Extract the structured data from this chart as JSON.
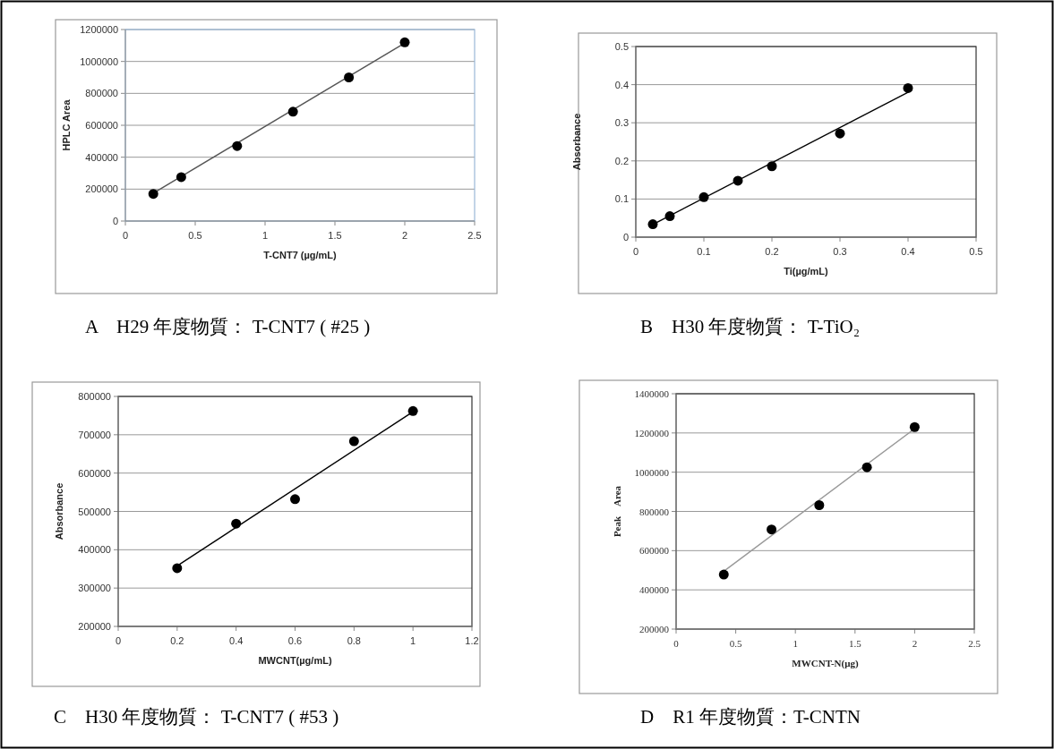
{
  "chart_data": [
    {
      "type": "scatter",
      "title": "A　H29 年度物質： T-CNT7 ( #25 )",
      "xlabel": "T-CNT7 (µg/mL)",
      "ylabel": "HPLC  Area",
      "xlim": [
        0,
        2.5
      ],
      "ylim": [
        0,
        1200000
      ],
      "xticks": [
        0,
        0.5,
        1,
        1.5,
        2,
        2.5
      ],
      "yticks": [
        0,
        200000,
        400000,
        600000,
        800000,
        1000000,
        1200000
      ],
      "grid": "y",
      "series": [
        {
          "marker": "circle",
          "color": "#000000",
          "x": [
            0.2,
            0.4,
            0.8,
            1.2,
            1.6,
            2.0
          ],
          "values": [
            170000,
            275000,
            470000,
            685000,
            900000,
            1120000
          ]
        },
        {
          "type": "line",
          "color": "#555555",
          "x": [
            0.2,
            2.0
          ],
          "values": [
            175000,
            1115000
          ]
        }
      ]
    },
    {
      "type": "scatter",
      "title": "B　H30 年度物質： T-TiO₂",
      "xlabel": "Ti(µg/mL)",
      "ylabel": "Absorbance",
      "xlim": [
        0,
        0.5
      ],
      "ylim": [
        0,
        0.5
      ],
      "xticks": [
        0,
        0.1,
        0.2,
        0.3,
        0.4,
        0.5
      ],
      "yticks": [
        0,
        0.1,
        0.2,
        0.3,
        0.4,
        0.5
      ],
      "grid": "y",
      "series": [
        {
          "marker": "circle",
          "color": "#000000",
          "x": [
            0.025,
            0.05,
            0.1,
            0.15,
            0.2,
            0.3,
            0.4
          ],
          "values": [
            0.034,
            0.055,
            0.105,
            0.148,
            0.186,
            0.272,
            0.391
          ]
        },
        {
          "type": "line",
          "color": "#000000",
          "x": [
            0.025,
            0.4
          ],
          "values": [
            0.033,
            0.38
          ]
        }
      ]
    },
    {
      "type": "scatter",
      "title": "C　H30 年度物質： T-CNT7 ( #53 )",
      "xlabel": "MWCNT(µg/mL)",
      "ylabel": "Absorbance",
      "xlim": [
        0,
        1.2
      ],
      "ylim": [
        200000,
        800000
      ],
      "xticks": [
        0,
        0.2,
        0.4,
        0.6,
        0.8,
        1,
        1.2
      ],
      "yticks": [
        200000,
        300000,
        400000,
        500000,
        600000,
        700000,
        800000
      ],
      "grid": "y",
      "series": [
        {
          "marker": "circle",
          "color": "#000000",
          "x": [
            0.2,
            0.4,
            0.6,
            0.8,
            1.0
          ],
          "values": [
            352000,
            468000,
            532000,
            683000,
            762000
          ]
        },
        {
          "type": "line",
          "color": "#000000",
          "x": [
            0.2,
            1.0
          ],
          "values": [
            358000,
            760000
          ]
        }
      ]
    },
    {
      "type": "scatter",
      "title": "D　R1 年度物質：T-CNTN",
      "xlabel": "MWCNT-N(μg)",
      "ylabel": "Peak　Area",
      "xlim": [
        0,
        2.5
      ],
      "ylim": [
        200000,
        1400000
      ],
      "xticks": [
        0,
        0.5,
        1,
        1.5,
        2,
        2.5
      ],
      "yticks": [
        200000,
        400000,
        600000,
        800000,
        1000000,
        1200000,
        1400000
      ],
      "grid": "y",
      "series": [
        {
          "marker": "circle",
          "color": "#000000",
          "x": [
            0.4,
            0.8,
            1.2,
            1.6,
            2.0
          ],
          "values": [
            478000,
            708000,
            832000,
            1025000,
            1230000
          ]
        },
        {
          "type": "line",
          "color": "#999999",
          "x": [
            0.4,
            2.0
          ],
          "values": [
            495000,
            1222000
          ]
        }
      ]
    }
  ]
}
